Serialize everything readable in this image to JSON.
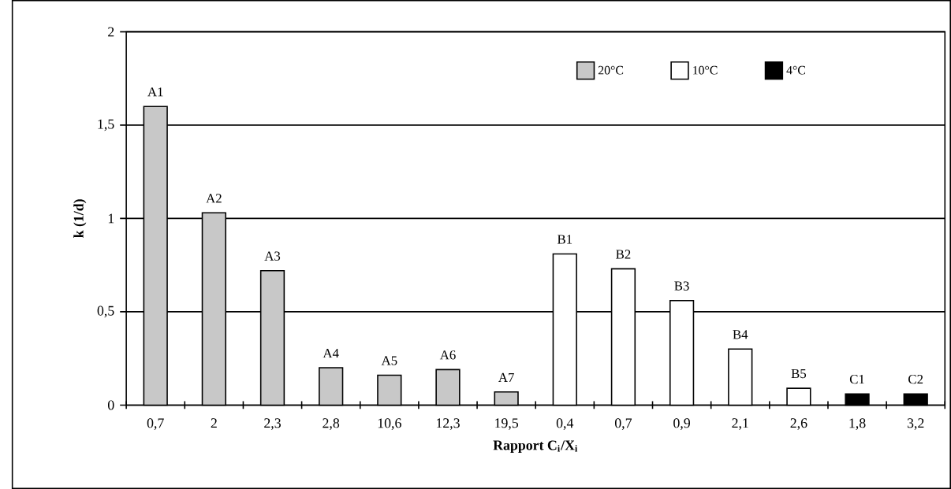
{
  "chart_data": {
    "type": "bar",
    "xlabel": "Rapport  C$_{i}$/X$_{i}$",
    "ylabel": "k (1/d)",
    "categories": [
      "0,7",
      "2",
      "2,3",
      "2,8",
      "10,6",
      "12,3",
      "19,5",
      "0,4",
      "0,7",
      "0,9",
      "2,1",
      "2,6",
      "1,8",
      "3,2"
    ],
    "series": [
      {
        "name": "20°C",
        "color": "#c8c8c8",
        "values": [
          1.6,
          1.03,
          0.72,
          0.2,
          0.16,
          0.19,
          0.07,
          null,
          null,
          null,
          null,
          null,
          null,
          null
        ]
      },
      {
        "name": "10°C",
        "color": "#ffffff",
        "values": [
          null,
          null,
          null,
          null,
          null,
          null,
          null,
          0.81,
          0.73,
          0.56,
          0.3,
          0.09,
          null,
          null
        ]
      },
      {
        "name": "4°C",
        "color": "#000000",
        "values": [
          null,
          null,
          null,
          null,
          null,
          null,
          null,
          null,
          null,
          null,
          null,
          null,
          0.06,
          0.06
        ]
      }
    ],
    "annotations": [
      "A1",
      "A2",
      "A3",
      "A4",
      "A5",
      "A6",
      "A7",
      "B1",
      "B2",
      "B3",
      "B4",
      "B5",
      "C1",
      "C2"
    ],
    "ylim": [
      0,
      2
    ],
    "yticks": [
      0,
      {
        "value": 0.5,
        "label": "0,5"
      },
      1,
      {
        "value": 1.5,
        "label": "1,5"
      },
      2
    ],
    "grid": "y",
    "legend": "top right"
  }
}
